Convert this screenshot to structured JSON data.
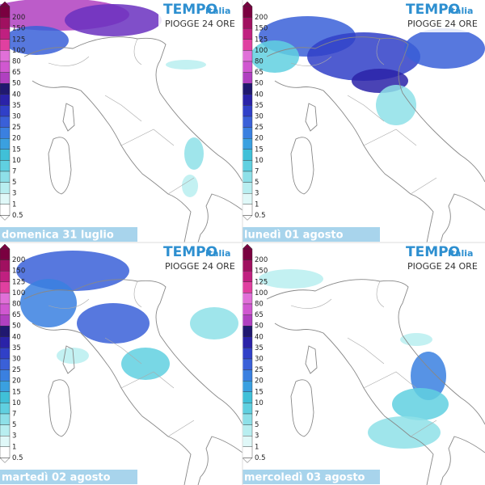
{
  "brand": {
    "tempo": "TEMPO",
    "italia": "italia"
  },
  "subtitle": "PIOGGE 24 ORE",
  "legend": [
    "200",
    "150",
    "125",
    "100",
    "80",
    "65",
    "50",
    "40",
    "35",
    "30",
    "25",
    "20",
    "15",
    "10",
    "7",
    "5",
    "3",
    "1",
    "0.5"
  ],
  "panels": [
    {
      "date": "domenica 31 luglio"
    },
    {
      "date": "lunedì 01 agosto"
    },
    {
      "date": "martedì 02 agosto"
    },
    {
      "date": "mercoledì 03 agosto"
    }
  ]
}
